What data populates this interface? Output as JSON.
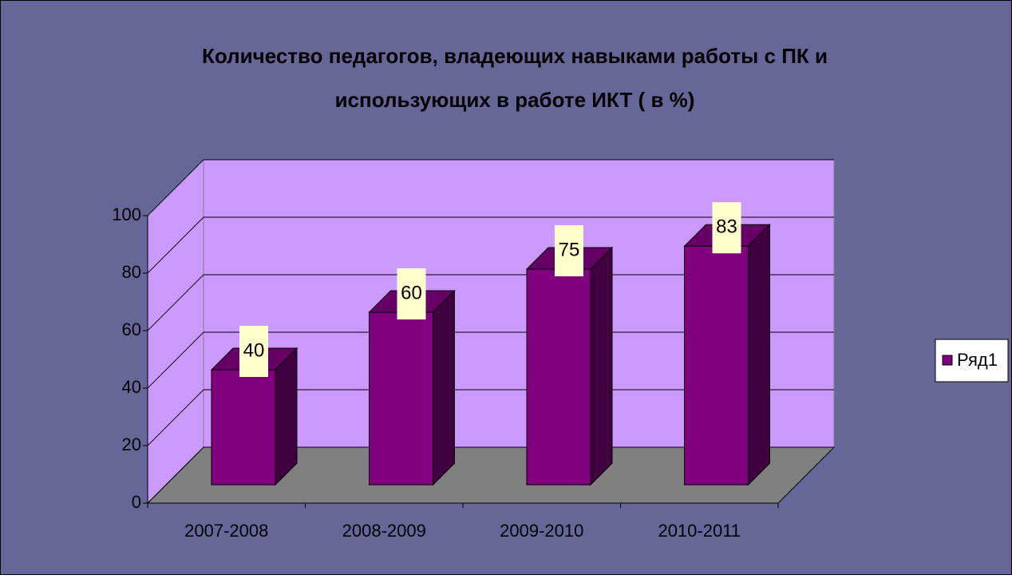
{
  "chart_data": {
    "type": "bar3d",
    "title": "Количество педагогов, владеющих навыками работы с ПК и",
    "subtitle": "использующих  в работе ИКТ ( в %)",
    "categories": [
      "2007-2008",
      "2008-2009",
      "2009-2010",
      "2010-2011"
    ],
    "series": [
      {
        "name": "Ряд1",
        "color": "#800080",
        "values": [
          40,
          60,
          75,
          83
        ]
      }
    ],
    "ylim": [
      0,
      100
    ],
    "yticks": [
      0,
      20,
      40,
      60,
      80,
      100
    ],
    "grid": true,
    "legend": "right"
  }
}
